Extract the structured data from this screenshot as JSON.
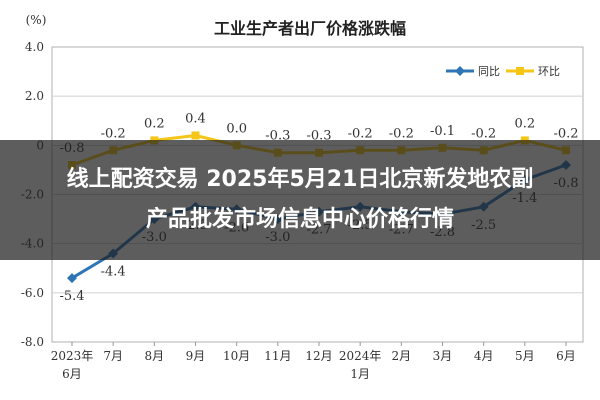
{
  "chart_data": {
    "type": "line",
    "title": "工业生产者出厂价格涨跌幅",
    "unit_label": "(%)",
    "ylim": [
      -8.0,
      4.0
    ],
    "y_ticks": [
      "4.0",
      "2.0",
      "0",
      "-2.0",
      "-4.0",
      "-6.0",
      "-8.0"
    ],
    "grid": true,
    "legend_position": "top-right",
    "categories": [
      {
        "top": "2023年",
        "bottom": "6月"
      },
      {
        "top": "7月",
        "bottom": ""
      },
      {
        "top": "8月",
        "bottom": ""
      },
      {
        "top": "9月",
        "bottom": ""
      },
      {
        "top": "10月",
        "bottom": ""
      },
      {
        "top": "11月",
        "bottom": ""
      },
      {
        "top": "12月",
        "bottom": ""
      },
      {
        "top": "2024年",
        "bottom": "1月"
      },
      {
        "top": "2月",
        "bottom": ""
      },
      {
        "top": "3月",
        "bottom": ""
      },
      {
        "top": "4月",
        "bottom": ""
      },
      {
        "top": "5月",
        "bottom": ""
      },
      {
        "top": "6月",
        "bottom": ""
      }
    ],
    "series": [
      {
        "name": "同比",
        "color": "#2e75b6",
        "values": [
          -5.4,
          -4.4,
          -3.0,
          -2.5,
          -2.6,
          -3.0,
          -2.7,
          -2.5,
          -2.7,
          -2.8,
          -2.5,
          -1.4,
          -0.8
        ],
        "labels": [
          "-5.4",
          "-4.4",
          "-3.0",
          "-2.5",
          "-2.6",
          "-3.0",
          "-2.7",
          "-2.5",
          "-2.7",
          "-2.8",
          "-2.5",
          "-1.4",
          "-0.8"
        ],
        "label_pos": "below"
      },
      {
        "name": "环比",
        "color": "#f5c518",
        "values": [
          -0.8,
          -0.2,
          0.2,
          0.4,
          0.0,
          -0.3,
          -0.3,
          -0.2,
          -0.2,
          -0.1,
          -0.2,
          0.2,
          -0.2
        ],
        "labels": [
          "-0.8",
          "-0.2",
          "0.2",
          "0.4",
          "0.0",
          "-0.3",
          "-0.3",
          "-0.2",
          "-0.2",
          "-0.1",
          "-0.2",
          "0.2",
          "-0.2"
        ],
        "label_pos": "above"
      }
    ]
  },
  "overlay": {
    "line1": "线上配资交易 2025年5月21日北京新发地农副",
    "line2": "产品批发市场信息中心价格行情"
  }
}
